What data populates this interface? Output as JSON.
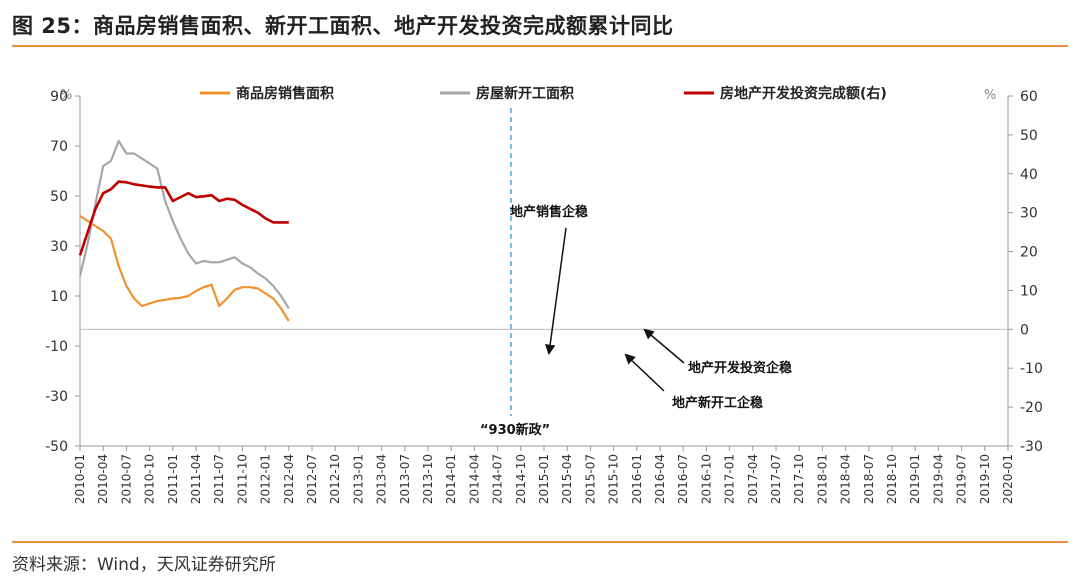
{
  "header": {
    "title": "图 25：商品房销售面积、新开工面积、地产开发投资完成额累计同比",
    "source": "资料来源：Wind，天风证券研究所"
  },
  "chart_data": {
    "type": "line",
    "left_axis": {
      "ylim": [
        -50,
        90
      ],
      "ticks": [
        "90",
        "70",
        "50",
        "30",
        "10",
        "-10",
        "-30",
        "-50"
      ],
      "unit": "%"
    },
    "right_axis": {
      "ylim": [
        -30,
        60
      ],
      "ticks": [
        "60",
        "50",
        "40",
        "30",
        "20",
        "10",
        "0",
        "-10",
        "-20",
        "-30"
      ],
      "unit": "%"
    },
    "x_tick_labels": [
      "2010-01",
      "2010-04",
      "2010-07",
      "2010-10",
      "2011-01",
      "2011-04",
      "2011-07",
      "2011-10",
      "2012-01",
      "2012-04",
      "2012-07",
      "2012-10",
      "2013-01",
      "2013-04",
      "2013-07",
      "2013-10",
      "2014-01",
      "2014-04",
      "2014-07",
      "2014-10",
      "2015-01",
      "2015-04",
      "2015-07",
      "2015-10",
      "2016-01",
      "2016-04",
      "2016-07",
      "2016-10",
      "2017-01",
      "2017-04",
      "2017-07",
      "2017-10",
      "2018-01",
      "2018-04",
      "2018-07",
      "2018-10",
      "2019-01",
      "2019-04",
      "2019-07",
      "2019-10",
      "2020-01"
    ],
    "legend_position": "top",
    "series": [
      {
        "name": "商品房销售面积",
        "axis": "left",
        "color": "#f0912f",
        "points": [
          [
            0,
            42
          ],
          [
            1,
            40
          ],
          [
            2,
            38
          ],
          [
            3,
            36
          ],
          [
            4,
            33
          ],
          [
            5,
            22
          ],
          [
            6,
            14
          ],
          [
            7,
            9
          ],
          [
            8,
            6
          ],
          [
            9,
            7
          ],
          [
            10,
            8
          ],
          [
            11,
            8.5
          ],
          [
            12,
            9
          ],
          [
            13,
            9.3
          ],
          [
            14,
            10
          ],
          [
            15,
            12
          ],
          [
            16,
            13.5
          ],
          [
            17,
            14.5
          ],
          [
            18,
            6
          ],
          [
            19,
            9
          ],
          [
            20,
            12.5
          ],
          [
            21,
            13.5
          ],
          [
            22,
            13.5
          ],
          [
            23,
            13
          ],
          [
            24,
            11
          ],
          [
            25,
            9
          ],
          [
            26,
            5
          ],
          [
            27,
            0
          ]
        ]
      },
      {
        "name": "房屋新开工面积",
        "axis": "left",
        "color": "#a6a6a6",
        "points": [
          [
            0,
            18
          ],
          [
            1,
            31
          ],
          [
            2,
            47
          ],
          [
            3,
            62
          ],
          [
            4,
            64
          ],
          [
            5,
            72
          ],
          [
            6,
            67
          ],
          [
            7,
            67
          ],
          [
            8,
            65
          ],
          [
            9,
            63
          ],
          [
            10,
            61
          ],
          [
            11,
            48
          ],
          [
            12,
            40
          ],
          [
            13,
            33
          ],
          [
            14,
            27
          ],
          [
            15,
            23
          ],
          [
            16,
            24
          ],
          [
            17,
            23.5
          ],
          [
            18,
            23.5
          ],
          [
            19,
            24.5
          ],
          [
            20,
            25.5
          ],
          [
            21,
            23
          ],
          [
            22,
            21.5
          ],
          [
            23,
            19
          ],
          [
            24,
            17
          ],
          [
            25,
            14
          ],
          [
            26,
            10
          ],
          [
            27,
            5
          ]
        ]
      },
      {
        "name": "房地产开发投资完成额(右)",
        "axis": "right",
        "color": "#c00000",
        "points": [
          [
            0,
            19
          ],
          [
            1,
            25
          ],
          [
            2,
            31
          ],
          [
            3,
            35
          ],
          [
            4,
            36
          ],
          [
            5,
            38
          ],
          [
            6,
            37.8
          ],
          [
            7,
            37.3
          ],
          [
            8,
            37
          ],
          [
            9,
            36.7
          ],
          [
            10,
            36.5
          ],
          [
            11,
            36.5
          ],
          [
            12,
            33
          ],
          [
            13,
            34
          ],
          [
            14,
            35
          ],
          [
            15,
            34
          ],
          [
            16,
            34.2
          ],
          [
            17,
            34.5
          ],
          [
            18,
            33
          ],
          [
            19,
            33.6
          ],
          [
            20,
            33.3
          ],
          [
            21,
            32
          ],
          [
            22,
            31
          ],
          [
            23,
            30
          ],
          [
            24,
            28.5
          ],
          [
            25,
            27.5
          ],
          [
            26,
            27.5
          ],
          [
            27,
            27.5
          ]
        ]
      }
    ],
    "annotations": [
      {
        "label": "地产销售企稳",
        "x_index": 55
      },
      {
        "label": "地产开发投资企稳",
        "x_index": 73
      },
      {
        "label": "地产新开工企稳",
        "x_index": 71
      },
      {
        "label": "“930新政”",
        "x_index": 57
      }
    ]
  }
}
